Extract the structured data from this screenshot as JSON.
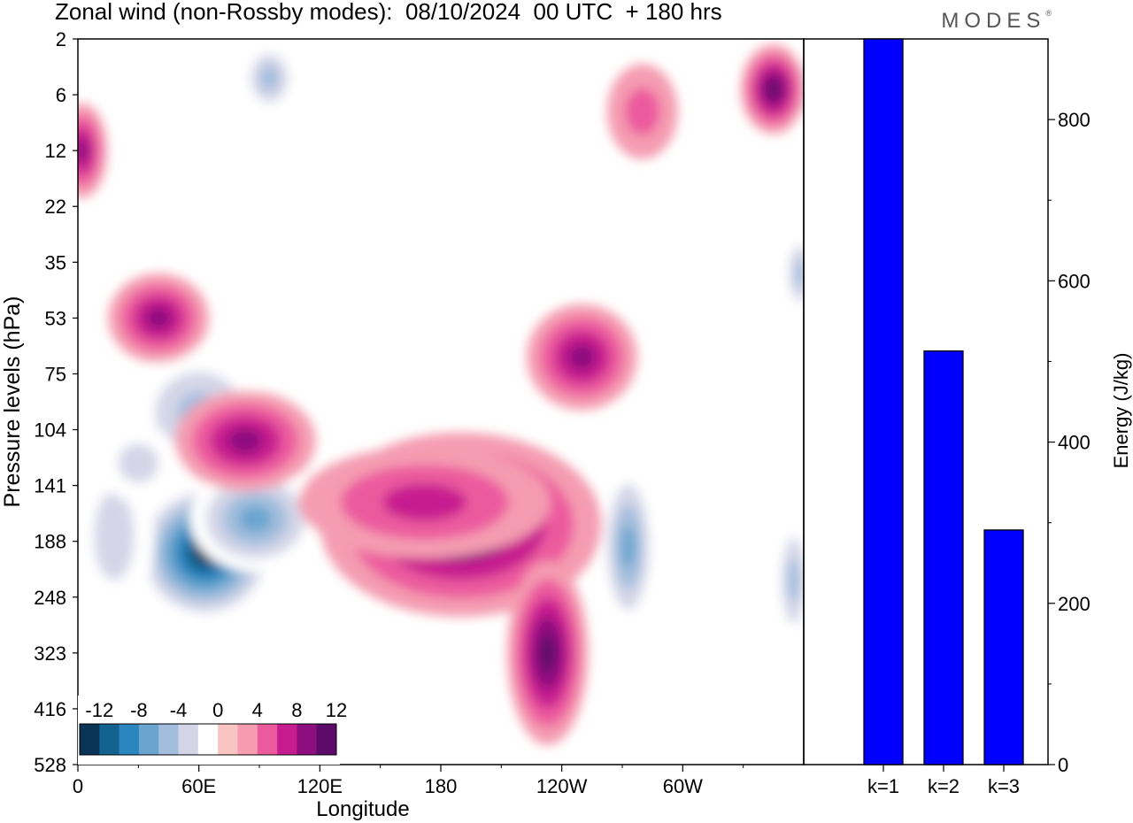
{
  "header": {
    "title": "Zonal wind (non-Rossby modes):  08/10/2024  00 UTC  + 180 hrs",
    "brand": "MODES",
    "brand_mark": "®"
  },
  "chart_data": [
    {
      "type": "heatmap",
      "title": "Zonal wind (non-Rossby modes):  08/10/2024  00 UTC  + 180 hrs",
      "xlabel": "Longitude",
      "ylabel": "Pressure levels (hPa)",
      "x_tick_labels": [
        "0",
        "60E",
        "120E",
        "180",
        "120W",
        "60W"
      ],
      "x_ticks_deg": [
        0,
        60,
        120,
        180,
        240,
        300
      ],
      "xlim_deg": [
        0,
        360
      ],
      "y_tick_labels": [
        "2",
        "6",
        "12",
        "22",
        "35",
        "53",
        "75",
        "104",
        "141",
        "188",
        "248",
        "323",
        "416",
        "528"
      ],
      "colorbar": {
        "tick_labels": [
          "-12",
          "-8",
          "-4",
          "0",
          "4",
          "8",
          "12"
        ],
        "levels": [
          -14,
          -12,
          -10,
          -8,
          -6,
          -4,
          -2,
          2,
          4,
          6,
          8,
          10,
          12,
          14
        ],
        "colors": [
          "#0a3557",
          "#13628f",
          "#2a86bf",
          "#6aa5cf",
          "#a3bedd",
          "#d4d6e8",
          "#ffffff",
          "#f8c5c2",
          "#f59cb1",
          "#ec5a9e",
          "#c71c8f",
          "#8d0e7f",
          "#5e0a6a"
        ]
      },
      "features": [
        {
          "lon": 63,
          "level_index": 9.2,
          "value": -13,
          "extent_deg": [
            30,
            110
          ],
          "extent_levels": [
            8.2,
            10.7
          ]
        },
        {
          "lon": 88,
          "level_index": 8.6,
          "value": -8,
          "extent_deg": [
            40,
            90
          ],
          "extent_levels": [
            7.5,
            9.4
          ]
        },
        {
          "lon": 18,
          "level_index": 8.9,
          "value": -4,
          "extent_deg": [
            30,
            50
          ],
          "extent_levels": [
            7.3,
            10.5
          ]
        },
        {
          "lon": 60,
          "level_index": 6.7,
          "value": -6,
          "extent_deg": [
            90,
            40
          ],
          "extent_levels": [
            5.6,
            7.8
          ]
        },
        {
          "lon": 30,
          "level_index": 7.6,
          "value": -4,
          "extent_deg": [
            50,
            30
          ],
          "extent_levels": [
            6.8,
            8.2
          ]
        },
        {
          "lon": 95,
          "level_index": 0.7,
          "value": -6,
          "extent_deg": [
            25,
            30
          ],
          "extent_levels": [
            0.2,
            1.5
          ]
        },
        {
          "lon": 273,
          "level_index": 9.1,
          "value": -8,
          "extent_deg": [
            20,
            35
          ],
          "extent_levels": [
            7.5,
            10.5
          ]
        },
        {
          "lon": 355,
          "level_index": 9.7,
          "value": -6,
          "extent_deg": [
            15,
            20
          ],
          "extent_levels": [
            8.5,
            10.8
          ]
        },
        {
          "lon": 358,
          "level_index": 4.2,
          "value": -6,
          "extent_deg": [
            12,
            18
          ],
          "extent_levels": [
            3.6,
            5.1
          ]
        },
        {
          "lon": 358,
          "level_index": 0.9,
          "value": -6,
          "extent_deg": [
            10,
            15
          ],
          "extent_levels": [
            0.2,
            1.6
          ]
        },
        {
          "lon": 190,
          "level_index": 8.7,
          "value": 10,
          "extent_deg": [
            130,
            150
          ],
          "extent_levels": [
            7.2,
            10.5
          ]
        },
        {
          "lon": 172,
          "level_index": 8.3,
          "value": 6,
          "extent_deg": [
            120,
            130
          ],
          "extent_levels": [
            7.6,
            9.6
          ]
        },
        {
          "lon": 233,
          "level_index": 11.0,
          "value": 10,
          "extent_deg": [
            35,
            45
          ],
          "extent_levels": [
            9.5,
            12.8
          ]
        },
        {
          "lon": 83,
          "level_index": 7.2,
          "value": 8,
          "extent_deg": [
            80,
            60
          ],
          "extent_levels": [
            6.2,
            8.0
          ]
        },
        {
          "lon": 40,
          "level_index": 5.0,
          "value": 8,
          "extent_deg": [
            60,
            40
          ],
          "extent_levels": [
            4.2,
            5.8
          ]
        },
        {
          "lon": 250,
          "level_index": 5.7,
          "value": 8,
          "extent_deg": [
            50,
            60
          ],
          "extent_levels": [
            4.8,
            6.7
          ]
        },
        {
          "lon": 2,
          "level_index": 2.0,
          "value": 8,
          "extent_deg": [
            30,
            20
          ],
          "extent_levels": [
            1.3,
            3.0
          ]
        },
        {
          "lon": 345,
          "level_index": 0.9,
          "value": 10,
          "extent_deg": [
            35,
            30
          ],
          "extent_levels": [
            0.0,
            1.6
          ]
        },
        {
          "lon": 280,
          "level_index": 1.3,
          "value": 4,
          "extent_deg": [
            40,
            30
          ],
          "extent_levels": [
            0.5,
            2.2
          ]
        }
      ]
    },
    {
      "type": "bar",
      "categories": [
        "k=1",
        "k=2",
        "k=3"
      ],
      "values": [
        900,
        513,
        291
      ],
      "xlabel": "",
      "ylabel": "Energy (J/kg)",
      "ylim": [
        0,
        900
      ],
      "y_tick_labels": [
        "0",
        "200",
        "400",
        "600",
        "800"
      ],
      "bar_color": "#0000ff"
    }
  ]
}
